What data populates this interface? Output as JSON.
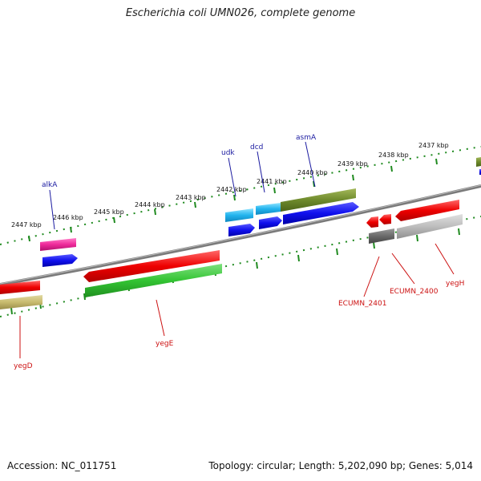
{
  "title": "Escherichia coli UMN026, complete genome",
  "footer": {
    "accession": "Accession: NC_011751",
    "topology": "Topology: circular; Length: 5,202,090 bp; Genes: 5,014"
  },
  "kbp_labels": [
    "2447 kbp",
    "2446 kbp",
    "2445 kbp",
    "2444 kbp",
    "2443 kbp",
    "2442 kbp",
    "2441 kbp",
    "2440 kbp",
    "2439 kbp",
    "2438 kbp",
    "2437 kbp"
  ],
  "gene_labels": {
    "alkA": "alkA",
    "udk": "udk",
    "dcd": "dcd",
    "asmA": "asmA",
    "yegD": "yegD",
    "yegE": "yegE",
    "ECUMN_2401": "ECUMN_2401",
    "ECUMN_2400": "ECUMN_2400",
    "yegH": "yegH"
  },
  "colors": {
    "backbone": "#7a7a7a",
    "tick": "#1f8a1f",
    "label_blue": "#1a1aa0",
    "label_red": "#cc1111"
  }
}
